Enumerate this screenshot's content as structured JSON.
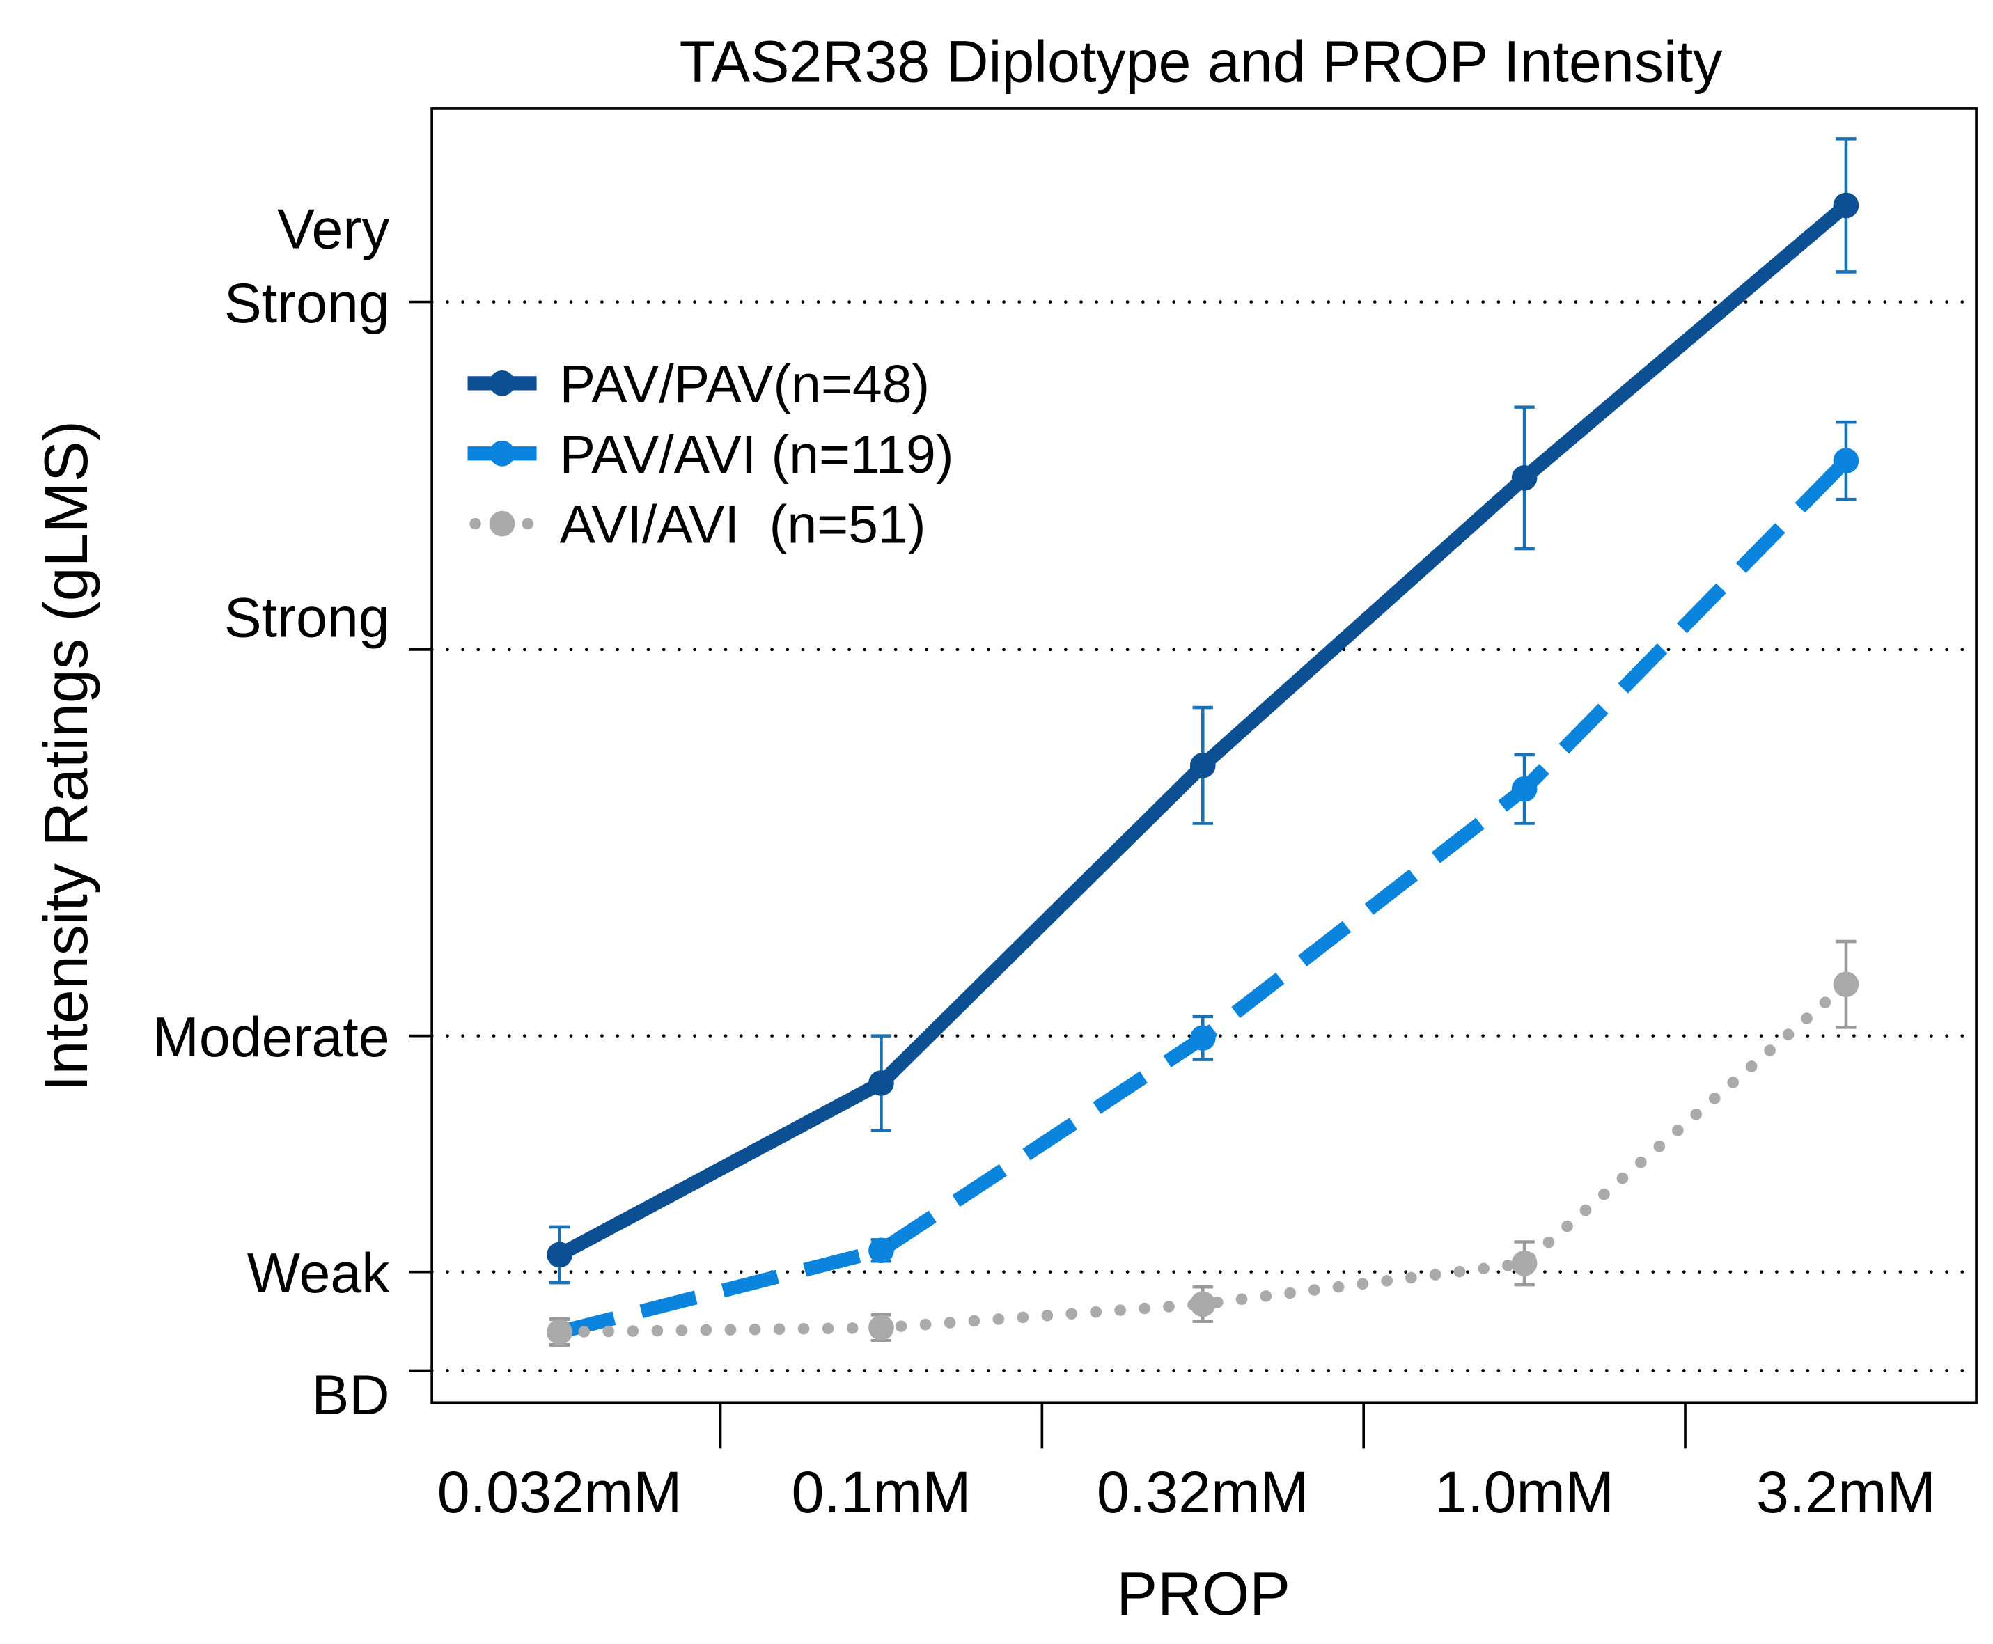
{
  "chart_data": {
    "type": "line",
    "title": "TAS2R38 Diplotype and PROP Intensity",
    "xlabel": "PROP",
    "ylabel": "Intensity Ratings (gLMS)",
    "categories": [
      "0.032mM",
      "0.1mM",
      "0.32mM",
      "1.0mM",
      "3.2mM"
    ],
    "y_ticks": [
      {
        "value": 1.4,
        "lines": [
          "BD"
        ]
      },
      {
        "value": 6,
        "lines": [
          "Weak"
        ]
      },
      {
        "value": 17,
        "lines": [
          "Moderate"
        ]
      },
      {
        "value": 35,
        "lines": [
          "Strong"
        ]
      },
      {
        "value": 51.2,
        "lines": [
          "Very",
          "Strong"
        ]
      }
    ],
    "ylim": [
      0,
      62
    ],
    "grid": "horizontal dotted at tick values",
    "legend_position": "top-left",
    "series": [
      {
        "name": "PAV/PAV(n=48)",
        "color": "#0d4f93",
        "style": "solid",
        "values": [
          6.8,
          14.8,
          29.6,
          43.0,
          55.7
        ],
        "errors": [
          1.3,
          2.2,
          2.7,
          3.3,
          3.1
        ],
        "error_color": "#1a72b5"
      },
      {
        "name": "PAV/AVI (n=119)",
        "color": "#0a84dc",
        "style": "dashed",
        "values": [
          3.2,
          7.0,
          16.9,
          28.5,
          43.8
        ],
        "errors": [
          0.6,
          0.5,
          1.0,
          1.6,
          1.8
        ],
        "error_color": "#1a72b5"
      },
      {
        "name": "AVI/AVI  (n=51)",
        "color": "#aaaaaa",
        "style": "dotted",
        "values": [
          3.2,
          3.4,
          4.5,
          6.4,
          19.4
        ],
        "errors": [
          0.6,
          0.6,
          0.8,
          1.0,
          2.0
        ],
        "error_color": "#9a9a9a"
      }
    ]
  }
}
